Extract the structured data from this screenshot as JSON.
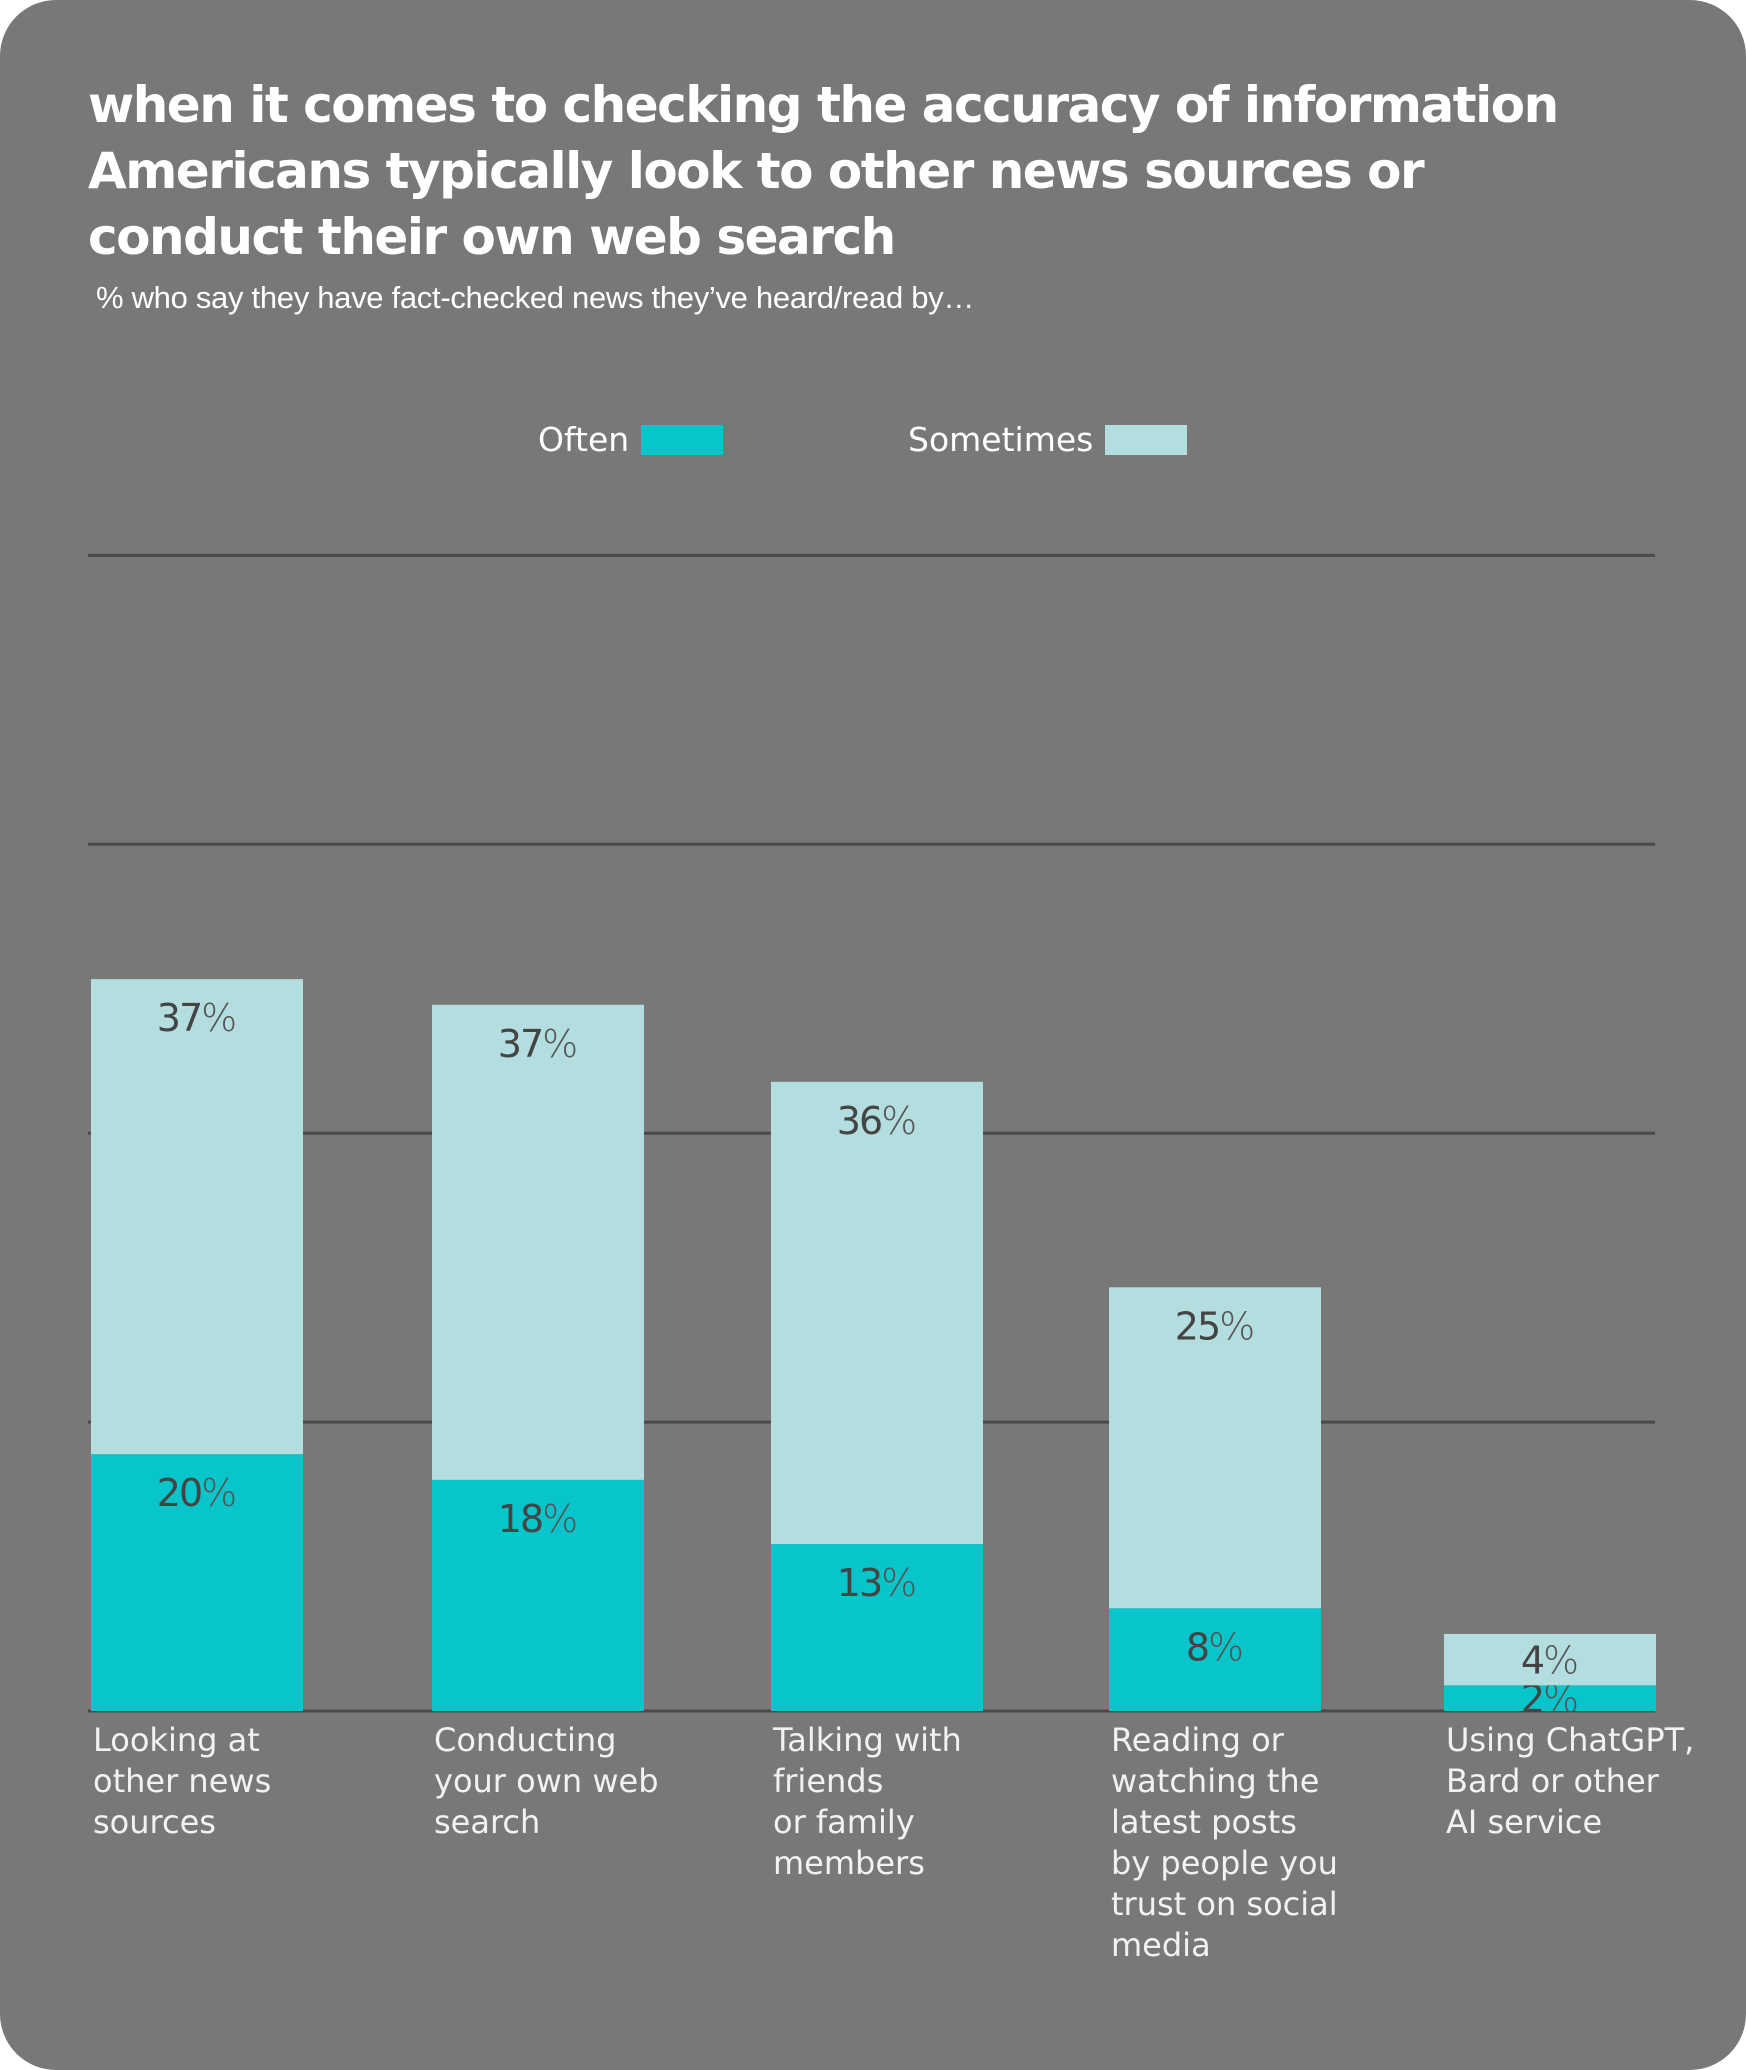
{
  "chart_data": {
    "type": "bar",
    "stacked": true,
    "title": "when it comes to checking the accuracy of information Americans typically look to other news sources or conduct their own web search",
    "subtitle": "% who say they have fact-checked news they’ve heard/read by…",
    "xlabel": "",
    "ylabel": "",
    "ylim": [
      0,
      90
    ],
    "gridlines": [
      22.5,
      45,
      67.5,
      90
    ],
    "grid": true,
    "legend_position": "top-center",
    "categories": [
      "Looking at\nother news\nsources",
      "Conducting\nyour own web\nsearch",
      "Talking with\nfriends\nor  family\nmembers",
      "Reading or\nwatching the\nlatest posts\nby people you\ntrust on social\nmedia",
      "Using ChatGPT,\nBard or other\nAI service"
    ],
    "series": [
      {
        "name": "Often",
        "color": "#07c5ca",
        "values": [
          20,
          18,
          13,
          8,
          2
        ]
      },
      {
        "name": "Sometimes",
        "color": "#b3dddf",
        "values": [
          37,
          37,
          36,
          25,
          4
        ]
      }
    ],
    "value_suffix": "%"
  },
  "colors": {
    "background": "#787878",
    "gridline": "#4a4a4a",
    "value_text": "#444444"
  }
}
